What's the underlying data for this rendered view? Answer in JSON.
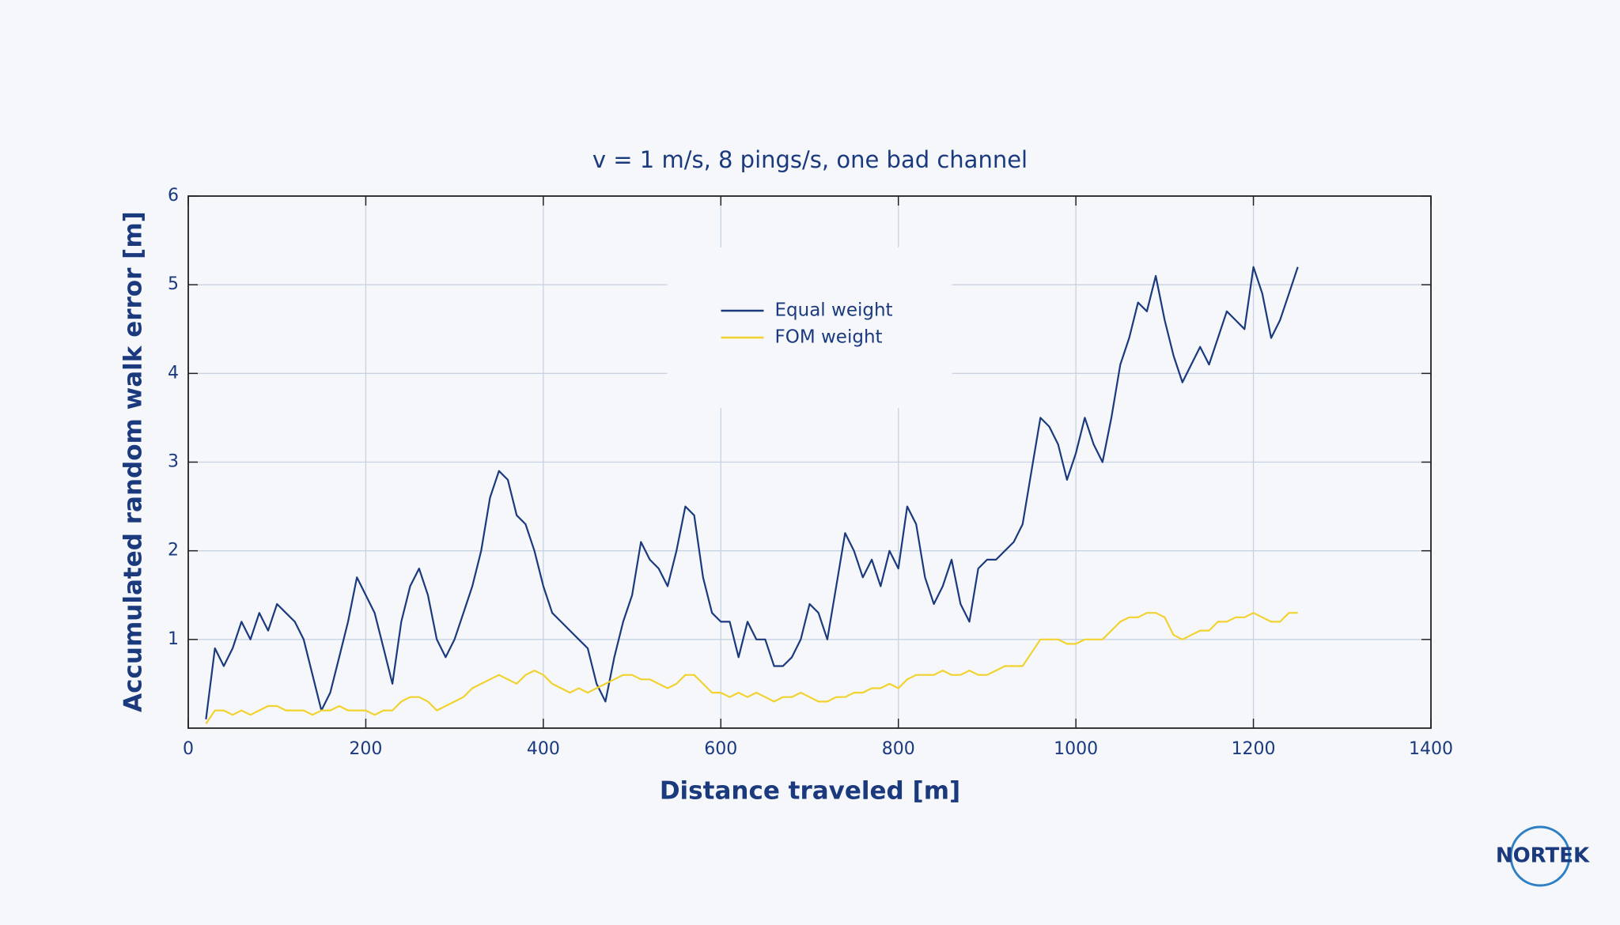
{
  "chart_data": {
    "type": "line",
    "title": "v = 1 m/s, 8 pings/s, one bad channel",
    "xlabel": "Distance traveled [m]",
    "ylabel": "Accumulated random walk error [m]",
    "xlim": [
      0,
      1400
    ],
    "xticks": [
      0,
      200,
      400,
      600,
      800,
      1000,
      1200,
      1400
    ],
    "ylim": [
      0,
      6
    ],
    "yticks": [
      1,
      2,
      3,
      4,
      5,
      6
    ],
    "grid": true,
    "legend": "upper center",
    "x": [
      20,
      30,
      40,
      50,
      60,
      70,
      80,
      90,
      100,
      110,
      120,
      130,
      140,
      150,
      160,
      170,
      180,
      190,
      200,
      210,
      220,
      230,
      240,
      250,
      260,
      270,
      280,
      290,
      300,
      310,
      320,
      330,
      340,
      350,
      360,
      370,
      380,
      390,
      400,
      410,
      420,
      430,
      440,
      450,
      460,
      470,
      480,
      490,
      500,
      510,
      520,
      530,
      540,
      550,
      560,
      570,
      580,
      590,
      600,
      610,
      620,
      630,
      640,
      650,
      660,
      670,
      680,
      690,
      700,
      710,
      720,
      730,
      740,
      750,
      760,
      770,
      780,
      790,
      800,
      810,
      820,
      830,
      840,
      850,
      860,
      870,
      880,
      890,
      900,
      910,
      920,
      930,
      940,
      950,
      960,
      970,
      980,
      990,
      1000,
      1010,
      1020,
      1030,
      1040,
      1050,
      1060,
      1070,
      1080,
      1090,
      1100,
      1110,
      1120,
      1130,
      1140,
      1150,
      1160,
      1170,
      1180,
      1190,
      1200,
      1210,
      1220,
      1230,
      1240,
      1250
    ],
    "series": [
      {
        "name": "Equal weight",
        "color": "#1b3a7e",
        "values": [
          0.1,
          0.9,
          0.7,
          0.9,
          1.2,
          1.0,
          1.3,
          1.1,
          1.4,
          1.3,
          1.2,
          1.0,
          0.6,
          0.2,
          0.4,
          0.8,
          1.2,
          1.7,
          1.5,
          1.3,
          0.9,
          0.5,
          1.2,
          1.6,
          1.8,
          1.5,
          1.0,
          0.8,
          1.0,
          1.3,
          1.6,
          2.0,
          2.6,
          2.9,
          2.8,
          2.4,
          2.3,
          2.0,
          1.6,
          1.3,
          1.2,
          1.1,
          1.0,
          0.9,
          0.5,
          0.3,
          0.8,
          1.2,
          1.5,
          2.1,
          1.9,
          1.8,
          1.6,
          2.0,
          2.5,
          2.4,
          1.7,
          1.3,
          1.2,
          1.2,
          0.8,
          1.2,
          1.0,
          1.0,
          0.7,
          0.7,
          0.8,
          1.0,
          1.4,
          1.3,
          1.0,
          1.6,
          2.2,
          2.0,
          1.7,
          1.9,
          1.6,
          2.0,
          1.8,
          2.5,
          2.3,
          1.7,
          1.4,
          1.6,
          1.9,
          1.4,
          1.2,
          1.8,
          1.9,
          1.9,
          2.0,
          2.1,
          2.3,
          2.9,
          3.5,
          3.4,
          3.2,
          2.8,
          3.1,
          3.5,
          3.2,
          3.0,
          3.5,
          4.1,
          4.4,
          4.8,
          4.7,
          5.1,
          4.6,
          4.2,
          3.9,
          4.1,
          4.3,
          4.1,
          4.4,
          4.7,
          4.6,
          4.5,
          5.2,
          4.9,
          4.4,
          4.6,
          4.9,
          5.2
        ]
      },
      {
        "name": "FOM weight",
        "color": "#f2d22e",
        "values": [
          0.05,
          0.2,
          0.2,
          0.15,
          0.2,
          0.15,
          0.2,
          0.25,
          0.25,
          0.2,
          0.2,
          0.2,
          0.15,
          0.2,
          0.2,
          0.25,
          0.2,
          0.2,
          0.2,
          0.15,
          0.2,
          0.2,
          0.3,
          0.35,
          0.35,
          0.3,
          0.2,
          0.25,
          0.3,
          0.35,
          0.45,
          0.5,
          0.55,
          0.6,
          0.55,
          0.5,
          0.6,
          0.65,
          0.6,
          0.5,
          0.45,
          0.4,
          0.45,
          0.4,
          0.45,
          0.5,
          0.55,
          0.6,
          0.6,
          0.55,
          0.55,
          0.5,
          0.45,
          0.5,
          0.6,
          0.6,
          0.5,
          0.4,
          0.4,
          0.35,
          0.4,
          0.35,
          0.4,
          0.35,
          0.3,
          0.35,
          0.35,
          0.4,
          0.35,
          0.3,
          0.3,
          0.35,
          0.35,
          0.4,
          0.4,
          0.45,
          0.45,
          0.5,
          0.45,
          0.55,
          0.6,
          0.6,
          0.6,
          0.65,
          0.6,
          0.6,
          0.65,
          0.6,
          0.6,
          0.65,
          0.7,
          0.7,
          0.7,
          0.85,
          1.0,
          1.0,
          1.0,
          0.95,
          0.95,
          1.0,
          1.0,
          1.0,
          1.1,
          1.2,
          1.25,
          1.25,
          1.3,
          1.3,
          1.25,
          1.05,
          1.0,
          1.05,
          1.1,
          1.1,
          1.2,
          1.2,
          1.25,
          1.25,
          1.3,
          1.25,
          1.2,
          1.2,
          1.3,
          1.3
        ]
      }
    ]
  },
  "logo": "NORTEK"
}
